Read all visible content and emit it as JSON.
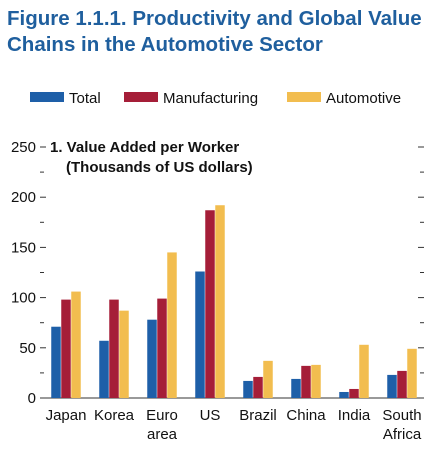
{
  "figure": {
    "title_line1": "Figure 1.1.1.  Productivity and Global Value",
    "title_line2": "Chains in the Automotive Sector",
    "title_color": "#1f5f9e"
  },
  "chart_data": {
    "type": "bar",
    "title": "1. Value Added per Worker",
    "subtitle": "(Thousands of US dollars)",
    "categories": [
      [
        "Japan"
      ],
      [
        "Korea"
      ],
      [
        "Euro",
        "area"
      ],
      [
        "US"
      ],
      [
        "Brazil"
      ],
      [
        "China"
      ],
      [
        "India"
      ],
      [
        "South",
        "Africa"
      ]
    ],
    "series": [
      {
        "name": "Total",
        "color": "#1e5fa8",
        "values": [
          71,
          57,
          78,
          126,
          17,
          19,
          6,
          23
        ]
      },
      {
        "name": "Manufacturing",
        "color": "#a51e38",
        "values": [
          98,
          98,
          99,
          187,
          21,
          32,
          9,
          27
        ]
      },
      {
        "name": "Automotive",
        "color": "#f2bd4f",
        "values": [
          106,
          87,
          145,
          192,
          37,
          33,
          53,
          49
        ]
      }
    ],
    "ylim": [
      0,
      250
    ],
    "yticks": [
      0,
      50,
      100,
      150,
      200,
      250
    ],
    "grid": false,
    "legend_position": "top"
  }
}
